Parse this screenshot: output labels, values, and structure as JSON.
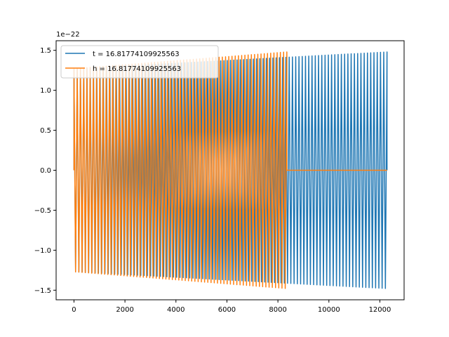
{
  "chart_data": {
    "type": "line",
    "title": "",
    "xlabel": "",
    "ylabel": "",
    "y_scale_label": "1e−22",
    "xlim": [
      -700,
      12950
    ],
    "ylim": [
      -1.62,
      1.62
    ],
    "x_ticks": [
      0,
      2000,
      4000,
      6000,
      8000,
      10000,
      12000
    ],
    "x_tick_labels": [
      "0",
      "2000",
      "4000",
      "6000",
      "8000",
      "10000",
      "12000"
    ],
    "y_ticks": [
      -1.5,
      -1.0,
      -0.5,
      0.0,
      0.5,
      1.0,
      1.5
    ],
    "y_tick_labels": [
      "−1.5",
      "−1.0",
      "−0.5",
      "0.0",
      "0.5",
      "1.0",
      "1.5"
    ],
    "grid": false,
    "legend_position": "upper-left",
    "series": [
      {
        "name": "t = 16.81774109925563",
        "color": "#1f77b4",
        "x_range": [
          0,
          12280
        ],
        "amplitude_start": 1.27,
        "amplitude_end": 1.48,
        "cycles": 96,
        "tail_from": null
      },
      {
        "name": "h = 16.81774109925563",
        "color": "#ff7f0e",
        "x_range": [
          0,
          8350
        ],
        "amplitude_start": 1.27,
        "amplitude_end": 1.48,
        "cycles": 66,
        "tail_from": 8350,
        "tail_to": 12280,
        "tail_value": 0.0
      }
    ]
  }
}
